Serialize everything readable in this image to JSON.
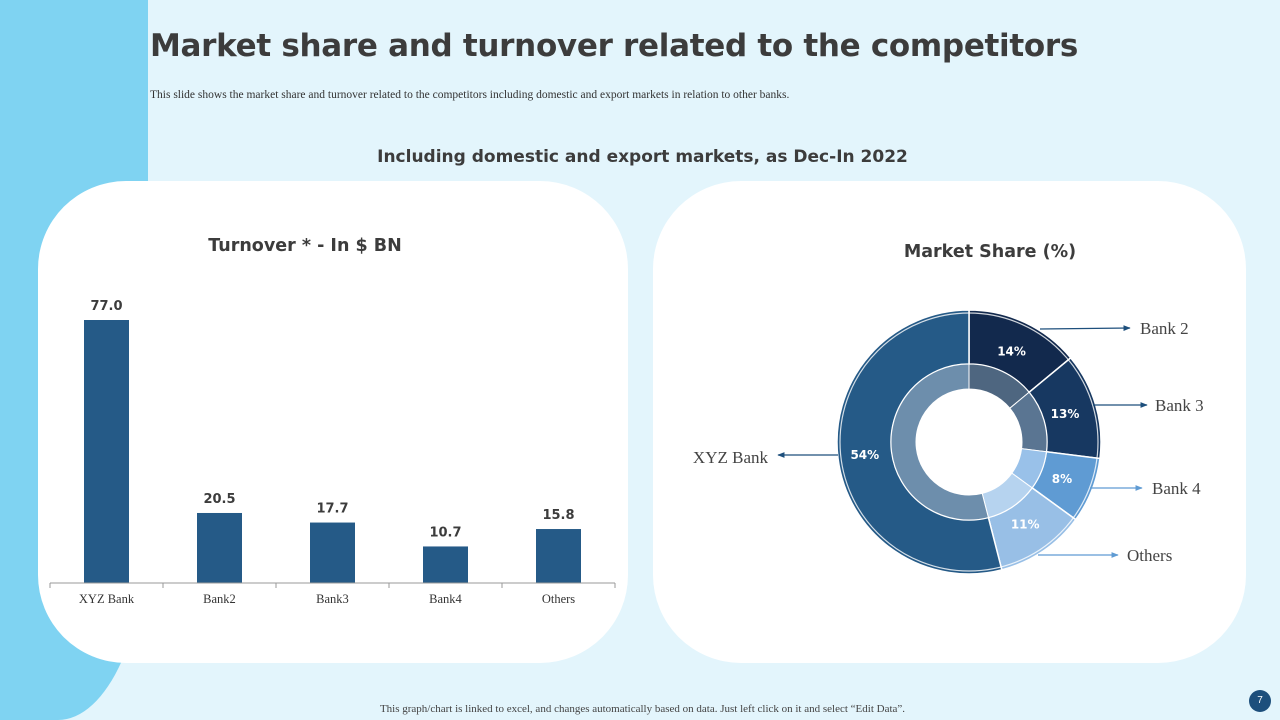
{
  "page": {
    "title": "Market share and turnover related to the competitors",
    "subtitle": "This slide shows the market share and turnover related to the competitors including domestic and export markets in relation to other banks.",
    "section_heading": "Including domestic and export markets, as Dec-In 2022",
    "footer": "This graph/chart is linked to excel, and changes automatically based on data. Just left click on it and select “Edit Data”.",
    "page_number": "7"
  },
  "colors": {
    "background": "#e3f5fc",
    "accent_strip": "#7fd3f2",
    "bar": "#255a87",
    "ring_outer_xyz": "#255a87",
    "ring_bank2": "#12294d",
    "ring_bank3": "#173861",
    "ring_bank4": "#5f9bd3",
    "ring_others": "#98bfe6",
    "ring_inner_xyz": "#6d8eac",
    "ring_inner_bank2": "#4e6680",
    "ring_inner_bank3": "#5a7592",
    "ring_inner_bank4": "#99c1e9",
    "ring_inner_others": "#b6d3ef"
  },
  "chart_data": [
    {
      "type": "bar",
      "title": "Turnover * - In $ BN",
      "categories": [
        "XYZ Bank",
        "Bank2",
        "Bank3",
        "Bank4",
        "Others"
      ],
      "values": [
        77.0,
        20.5,
        17.7,
        10.7,
        15.8
      ],
      "value_labels": [
        "77.0",
        "20.5",
        "17.7",
        "10.7",
        "15.8"
      ],
      "xlabel": "",
      "ylabel": "",
      "ylim": [
        0,
        77.0
      ],
      "grid": false,
      "legend": "none"
    },
    {
      "type": "pie",
      "variant": "double-ring donut",
      "title": "Market Share (%)",
      "categories": [
        "Bank 2",
        "Bank 3",
        "Bank 4",
        "Others",
        "XYZ Bank"
      ],
      "values": [
        14,
        13,
        8,
        11,
        54
      ],
      "value_labels": [
        "14%",
        "13%",
        "8%",
        "11%",
        "54%"
      ],
      "callout_labels": [
        "Bank 2",
        "Bank 3",
        "Bank 4",
        "Others",
        "XYZ Bank"
      ],
      "legend": "callouts"
    }
  ]
}
